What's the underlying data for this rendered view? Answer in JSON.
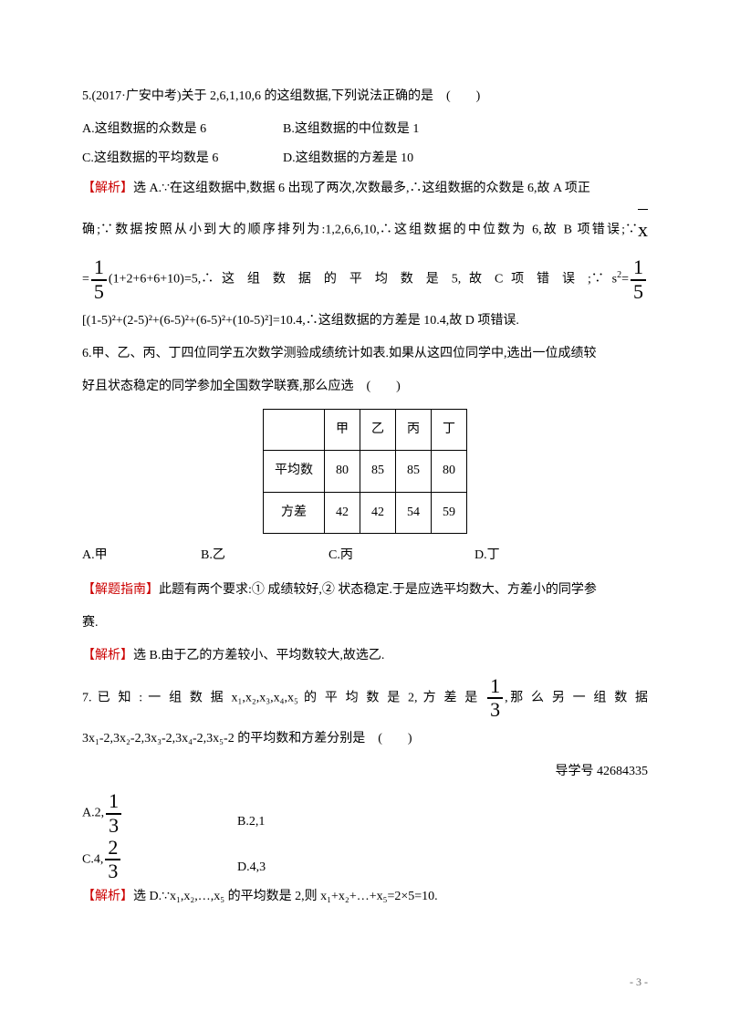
{
  "q5": {
    "stem": "5.(2017·广安中考)关于 2,6,1,10,6 的这组数据,下列说法正确的是　(　　)",
    "optA": "A.这组数据的众数是 6",
    "optB": "B.这组数据的中位数是 1",
    "optC": "C.这组数据的平均数是 6",
    "optD": "D.这组数据的方差是 10",
    "analLabel": "【解析】",
    "anal1a": "选 A.∵在这组数据中,数据 6 出现了两次,次数最多,∴这组数据的众数是 6,故 A 项正",
    "anal1b": "确;∵数据按照从小到大的顺序排列为:1,2,6,6,10,∴这组数据的中位数为 6,故 B 项错误;∵",
    "anal2a": "=",
    "anal2b": "(1+2+6+6+10)=5,∴ 这 组 数 据 的 平 均 数 是 5, 故 C 项 错 误 ;∵ s",
    "anal2c": "=",
    "anal3": "[(1-5)²+(2-5)²+(6-5)²+(6-5)²+(10-5)²]=10.4,∴这组数据的方差是 10.4,故 D 项错误."
  },
  "q6": {
    "stem1": "6.甲、乙、丙、丁四位同学五次数学测验成绩统计如表.如果从这四位同学中,选出一位成绩较",
    "stem2": "好且状态稳定的同学参加全国数学联赛,那么应选　(　　)",
    "table": {
      "headers": [
        "",
        "甲",
        "乙",
        "丙",
        "丁"
      ],
      "rows": [
        [
          "平均数",
          "80",
          "85",
          "85",
          "80"
        ],
        [
          "方差",
          "42",
          "42",
          "54",
          "59"
        ]
      ]
    },
    "optA": "A.甲",
    "optB": "B.乙",
    "optC": "C.丙",
    "optD": "D.丁",
    "hintLabel": "【解题指南】",
    "hint": "此题有两个要求:① 成绩较好,② 状态稳定.于是应选平均数大、方差小的同学参",
    "hint2": "赛.",
    "analLabel": "【解析】",
    "anal": "选 B.由于乙的方差较小、平均数较大,故选乙."
  },
  "q7": {
    "stem1": "7. 已 知 : 一 组 数 据 x₁,x₂,x₃,x₄,x₅ 的 平 均 数 是 2, 方 差 是",
    "stem2": ",那 么 另 一 组 数 据",
    "stem3": "3x₁-2,3x₂-2,3x₃-2,3x₄-2,3x₅-2 的平均数和方差分别是　(　　)",
    "ref": "导学号 42684335",
    "optA": "A.2,",
    "optB": "B.2,1",
    "optC": "C.4,",
    "optD": "D.4,3",
    "analLabel": "【解析】",
    "anal": "选 D.∵x₁,x₂,…,x₅ 的平均数是 2,则 x₁+x₂+…+x₅=2×5=10."
  },
  "frac": {
    "one_five_num": "1",
    "one_five_den": "5",
    "one_three_num": "1",
    "one_three_den": "3",
    "two_three_num": "2",
    "two_three_den": "3"
  },
  "xbar": "x",
  "sup2": "2",
  "footer": "- 3 -"
}
